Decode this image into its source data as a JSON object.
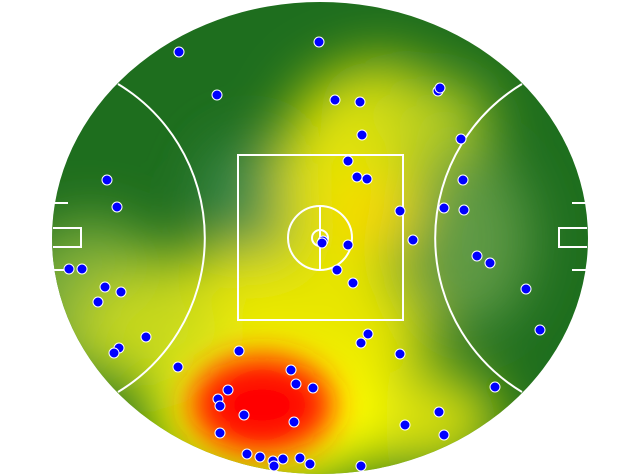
{
  "heatmap": {
    "colors": {
      "low": "#1e6e1e",
      "mid": "#3d8c4a",
      "high_yellow": "#f2ee00",
      "peak_orange": "#ffcc00",
      "peak_red": "#ff0000",
      "lines": "#ffffff",
      "marker": "#0000ff"
    },
    "marker_icon": "blue-circle",
    "marker_count": 62
  }
}
